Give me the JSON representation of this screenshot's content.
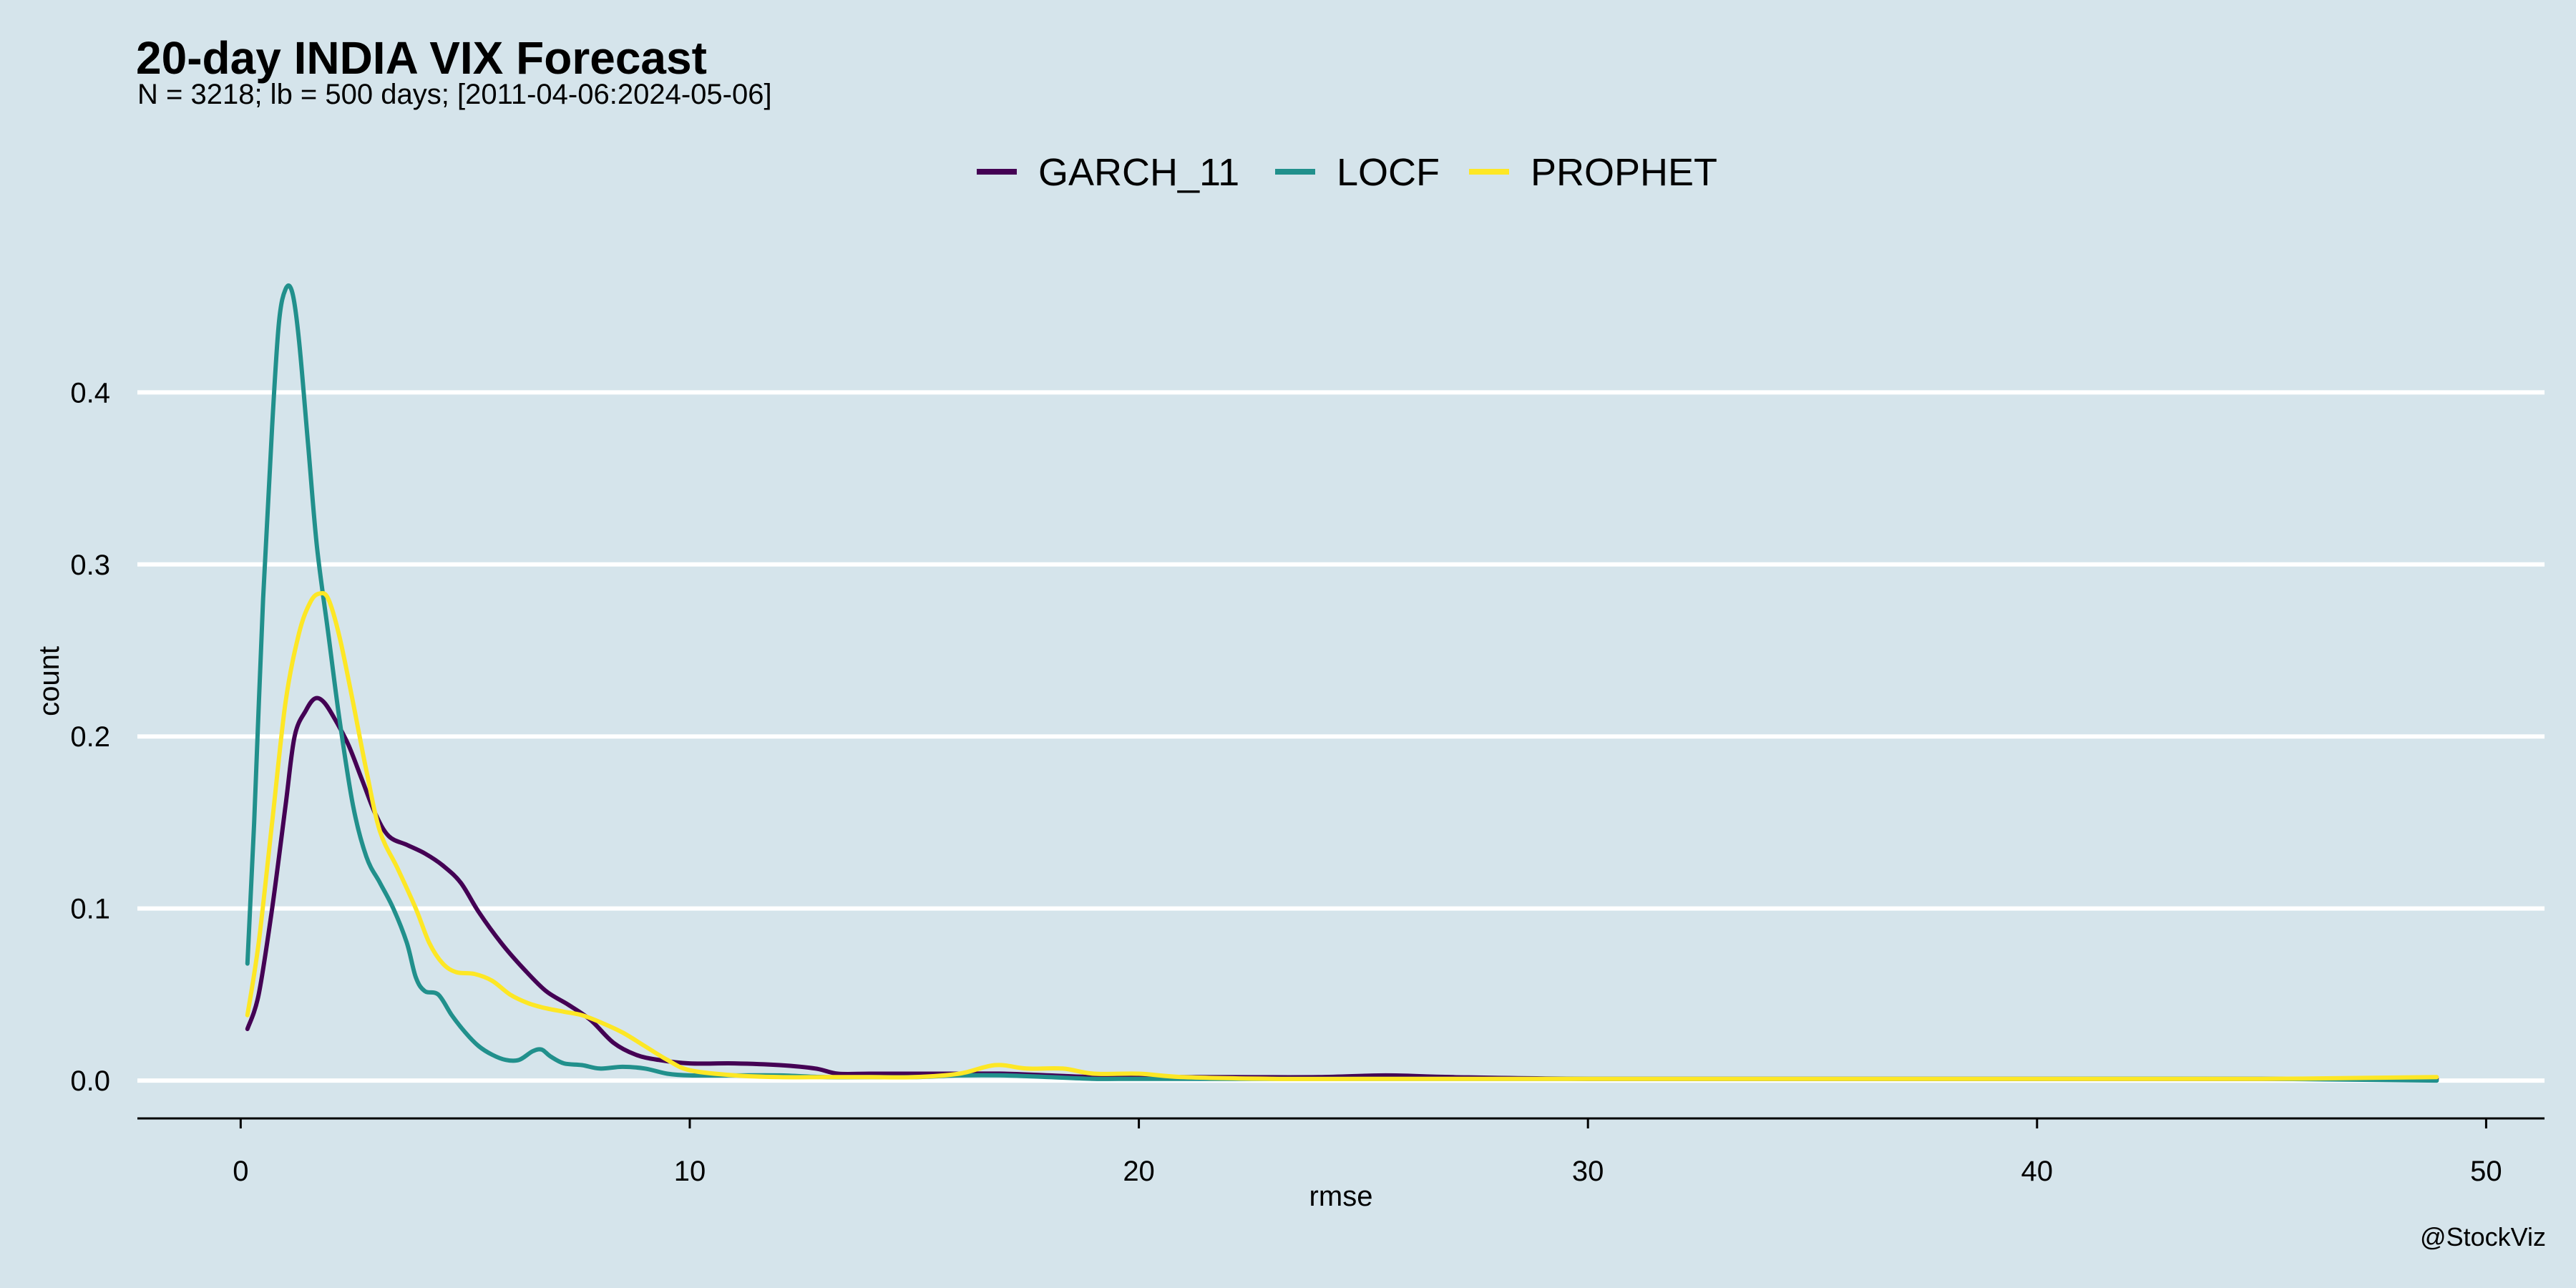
{
  "title": "20-day INDIA VIX Forecast",
  "subtitle": "N = 3218; lb = 500 days; [2011-04-06:2024-05-06]",
  "caption": "@StockViz",
  "chart_data": {
    "type": "line",
    "title": "20-day INDIA VIX Forecast",
    "subtitle": "N = 3218; lb = 500 days; [2011-04-06:2024-05-06]",
    "xlabel": "rmse",
    "ylabel": "count",
    "xlim": [
      -2.3,
      51.3
    ],
    "ylim": [
      -0.022,
      0.47
    ],
    "x_ticks": [
      0,
      10,
      20,
      30,
      40,
      50
    ],
    "x_tick_labels": [
      "0",
      "10",
      "20",
      "30",
      "40",
      "50"
    ],
    "y_ticks": [
      0.0,
      0.1,
      0.2,
      0.3,
      0.4
    ],
    "y_tick_labels": [
      "0.0",
      "0.1",
      "0.2",
      "0.3",
      "0.4"
    ],
    "grid": "horizontal",
    "legend_position": "top",
    "colors": {
      "background": "#d5e4eb",
      "grid": "#ffffff",
      "GARCH_11": "#440154",
      "LOCF": "#21908c",
      "PROPHET": "#fde725"
    },
    "series": [
      {
        "name": "GARCH_11",
        "color": "#440154",
        "points": [
          [
            0.15,
            0.03
          ],
          [
            0.4,
            0.05
          ],
          [
            0.7,
            0.1
          ],
          [
            1.0,
            0.16
          ],
          [
            1.2,
            0.2
          ],
          [
            1.45,
            0.215
          ],
          [
            1.65,
            0.222
          ],
          [
            1.85,
            0.22
          ],
          [
            2.1,
            0.21
          ],
          [
            2.4,
            0.195
          ],
          [
            2.7,
            0.175
          ],
          [
            3.0,
            0.155
          ],
          [
            3.3,
            0.142
          ],
          [
            3.7,
            0.137
          ],
          [
            4.1,
            0.132
          ],
          [
            4.5,
            0.125
          ],
          [
            4.9,
            0.115
          ],
          [
            5.3,
            0.098
          ],
          [
            5.8,
            0.08
          ],
          [
            6.3,
            0.065
          ],
          [
            6.8,
            0.052
          ],
          [
            7.3,
            0.044
          ],
          [
            7.8,
            0.035
          ],
          [
            8.3,
            0.022
          ],
          [
            8.8,
            0.015
          ],
          [
            9.3,
            0.012
          ],
          [
            10.0,
            0.01
          ],
          [
            11.0,
            0.01
          ],
          [
            12.0,
            0.009
          ],
          [
            12.8,
            0.007
          ],
          [
            13.3,
            0.004
          ],
          [
            14.0,
            0.004
          ],
          [
            15.0,
            0.004
          ],
          [
            16.0,
            0.004
          ],
          [
            17.0,
            0.004
          ],
          [
            18.0,
            0.003
          ],
          [
            19.0,
            0.002
          ],
          [
            20.0,
            0.002
          ],
          [
            22.0,
            0.002
          ],
          [
            24.0,
            0.002
          ],
          [
            25.5,
            0.003
          ],
          [
            27.0,
            0.002
          ],
          [
            30.0,
            0.001
          ],
          [
            35.0,
            0.001
          ],
          [
            40.0,
            0.001
          ],
          [
            45.0,
            0.001
          ],
          [
            48.9,
            0.001
          ]
        ]
      },
      {
        "name": "LOCF",
        "color": "#21908c",
        "points": [
          [
            0.15,
            0.068
          ],
          [
            0.3,
            0.15
          ],
          [
            0.5,
            0.28
          ],
          [
            0.7,
            0.38
          ],
          [
            0.85,
            0.44
          ],
          [
            1.0,
            0.46
          ],
          [
            1.15,
            0.458
          ],
          [
            1.3,
            0.43
          ],
          [
            1.5,
            0.37
          ],
          [
            1.7,
            0.31
          ],
          [
            1.95,
            0.26
          ],
          [
            2.2,
            0.21
          ],
          [
            2.5,
            0.16
          ],
          [
            2.8,
            0.13
          ],
          [
            3.1,
            0.115
          ],
          [
            3.4,
            0.1
          ],
          [
            3.7,
            0.08
          ],
          [
            3.9,
            0.06
          ],
          [
            4.1,
            0.052
          ],
          [
            4.4,
            0.05
          ],
          [
            4.7,
            0.038
          ],
          [
            5.0,
            0.028
          ],
          [
            5.3,
            0.02
          ],
          [
            5.6,
            0.015
          ],
          [
            5.9,
            0.012
          ],
          [
            6.2,
            0.012
          ],
          [
            6.5,
            0.017
          ],
          [
            6.7,
            0.018
          ],
          [
            6.9,
            0.014
          ],
          [
            7.2,
            0.01
          ],
          [
            7.6,
            0.009
          ],
          [
            8.0,
            0.007
          ],
          [
            8.5,
            0.008
          ],
          [
            9.0,
            0.007
          ],
          [
            9.5,
            0.004
          ],
          [
            10.0,
            0.003
          ],
          [
            11.0,
            0.003
          ],
          [
            12.0,
            0.003
          ],
          [
            13.0,
            0.002
          ],
          [
            14.0,
            0.002
          ],
          [
            15.0,
            0.002
          ],
          [
            16.0,
            0.003
          ],
          [
            17.0,
            0.003
          ],
          [
            18.0,
            0.002
          ],
          [
            19.0,
            0.001
          ],
          [
            20.0,
            0.001
          ],
          [
            22.0,
            0.001
          ],
          [
            25.0,
            0.001
          ],
          [
            30.0,
            0.001
          ],
          [
            35.0,
            0.001
          ],
          [
            40.0,
            0.001
          ],
          [
            45.0,
            0.001
          ],
          [
            48.9,
            0.0
          ]
        ]
      },
      {
        "name": "PROPHET",
        "color": "#fde725",
        "points": [
          [
            0.15,
            0.038
          ],
          [
            0.4,
            0.08
          ],
          [
            0.7,
            0.15
          ],
          [
            1.0,
            0.22
          ],
          [
            1.3,
            0.26
          ],
          [
            1.55,
            0.278
          ],
          [
            1.75,
            0.283
          ],
          [
            1.95,
            0.28
          ],
          [
            2.2,
            0.258
          ],
          [
            2.5,
            0.22
          ],
          [
            2.8,
            0.18
          ],
          [
            3.1,
            0.145
          ],
          [
            3.5,
            0.123
          ],
          [
            3.9,
            0.1
          ],
          [
            4.2,
            0.08
          ],
          [
            4.5,
            0.068
          ],
          [
            4.8,
            0.063
          ],
          [
            5.2,
            0.062
          ],
          [
            5.6,
            0.058
          ],
          [
            6.0,
            0.05
          ],
          [
            6.4,
            0.045
          ],
          [
            6.8,
            0.042
          ],
          [
            7.2,
            0.04
          ],
          [
            7.6,
            0.038
          ],
          [
            8.0,
            0.034
          ],
          [
            8.5,
            0.028
          ],
          [
            9.0,
            0.02
          ],
          [
            9.5,
            0.012
          ],
          [
            10.0,
            0.006
          ],
          [
            11.0,
            0.003
          ],
          [
            12.0,
            0.002
          ],
          [
            13.0,
            0.002
          ],
          [
            14.0,
            0.002
          ],
          [
            15.0,
            0.002
          ],
          [
            16.0,
            0.004
          ],
          [
            16.8,
            0.009
          ],
          [
            17.5,
            0.007
          ],
          [
            18.3,
            0.007
          ],
          [
            19.0,
            0.004
          ],
          [
            20.0,
            0.004
          ],
          [
            21.0,
            0.002
          ],
          [
            23.0,
            0.001
          ],
          [
            25.0,
            0.001
          ],
          [
            30.0,
            0.001
          ],
          [
            35.0,
            0.001
          ],
          [
            40.0,
            0.001
          ],
          [
            45.0,
            0.001
          ],
          [
            48.9,
            0.002
          ]
        ]
      }
    ]
  }
}
